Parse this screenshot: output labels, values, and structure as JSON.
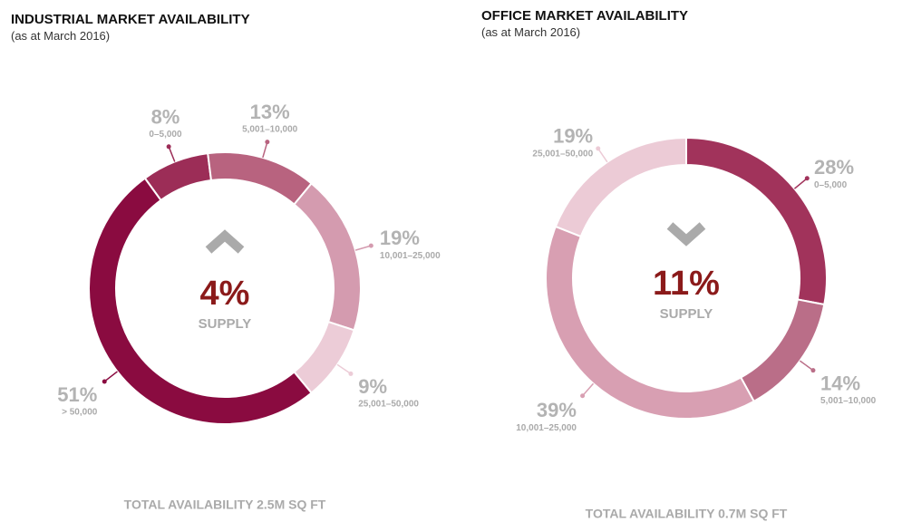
{
  "chart_data": [
    {
      "type": "donut",
      "title": "INDUSTRIAL MARKET AVAILABILITY",
      "subtitle": "(as at March 2016)",
      "categories": [
        "0–5,000",
        "5,001–10,000",
        "10,001–25,000",
        "25,001–50,000",
        "> 50,000"
      ],
      "values": [
        8,
        13,
        19,
        9,
        51
      ],
      "value_labels": [
        "8%",
        "13%",
        "19%",
        "9%",
        "51%"
      ],
      "colors": [
        "#9c2d57",
        "#b8637f",
        "#d49baf",
        "#ecccd7",
        "#8a0b40"
      ],
      "start_angle": -36,
      "center_value": "4%",
      "center_label": "SUPPLY",
      "arrow": "up",
      "footer": "TOTAL AVAILABILITY 2.5M SQ FT"
    },
    {
      "type": "donut",
      "title": "OFFICE MARKET AVAILABILITY",
      "subtitle": "(as at March 2016)",
      "categories": [
        "0–5,000",
        "5,001–10,000",
        "10,001–25,000",
        "25,001–50,000"
      ],
      "values": [
        28,
        14,
        39,
        19
      ],
      "value_labels": [
        "28%",
        "14%",
        "39%",
        "19%"
      ],
      "colors": [
        "#a1335b",
        "#ba6e88",
        "#d89fb2",
        "#eccbd6"
      ],
      "start_angle": 0,
      "center_value": "11%",
      "center_label": "SUPPLY",
      "arrow": "down",
      "footer": "TOTAL AVAILABILITY 0.7M SQ FT"
    }
  ]
}
